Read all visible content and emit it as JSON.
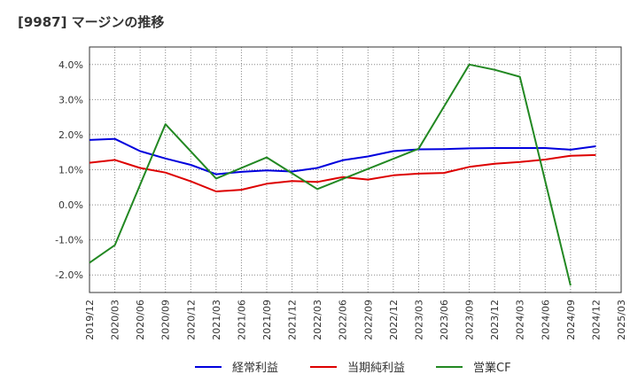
{
  "chart_data": {
    "type": "line",
    "title": "[9987]  マージンの推移",
    "xlabel": "",
    "ylabel": "",
    "x_ticks": [
      "2019/12",
      "2020/03",
      "2020/06",
      "2020/09",
      "2020/12",
      "2021/03",
      "2021/06",
      "2021/09",
      "2021/12",
      "2022/03",
      "2022/06",
      "2022/09",
      "2022/12",
      "2023/03",
      "2023/06",
      "2023/09",
      "2023/12",
      "2024/03",
      "2024/06",
      "2024/09",
      "2024/12",
      "2025/03"
    ],
    "y_ticks": [
      "-2.0%",
      "-1.0%",
      "0.0%",
      "1.0%",
      "2.0%",
      "3.0%",
      "4.0%"
    ],
    "ylim": [
      -2.5,
      4.5
    ],
    "grid": true,
    "legend_position": "bottom",
    "series": [
      {
        "name": "経常利益",
        "color": "#0000dd",
        "x": [
          "2019/12",
          "2020/03",
          "2020/06",
          "2020/09",
          "2020/12",
          "2021/03",
          "2021/06",
          "2021/09",
          "2021/12",
          "2022/03",
          "2022/06",
          "2022/09",
          "2022/12",
          "2023/03",
          "2023/06",
          "2023/09",
          "2023/12",
          "2024/03",
          "2024/06",
          "2024/09",
          "2024/12"
        ],
        "values": [
          1.85,
          1.88,
          1.53,
          1.32,
          1.14,
          0.87,
          0.94,
          0.98,
          0.95,
          1.05,
          1.27,
          1.38,
          1.53,
          1.58,
          1.59,
          1.61,
          1.62,
          1.62,
          1.62,
          1.57,
          1.67
        ]
      },
      {
        "name": "当期純利益",
        "color": "#dd0000",
        "x": [
          "2019/12",
          "2020/03",
          "2020/06",
          "2020/09",
          "2020/12",
          "2021/03",
          "2021/06",
          "2021/09",
          "2021/12",
          "2022/03",
          "2022/06",
          "2022/09",
          "2022/12",
          "2023/03",
          "2023/06",
          "2023/09",
          "2023/12",
          "2024/03",
          "2024/06",
          "2024/09",
          "2024/12"
        ],
        "values": [
          1.2,
          1.28,
          1.05,
          0.92,
          0.67,
          0.38,
          0.43,
          0.6,
          0.68,
          0.65,
          0.79,
          0.72,
          0.84,
          0.89,
          0.91,
          1.08,
          1.17,
          1.22,
          1.29,
          1.4,
          1.42
        ]
      },
      {
        "name": "営業CF",
        "color": "#228822",
        "x": [
          "2019/12",
          "2020/03",
          "2020/09",
          "2021/03",
          "2021/09",
          "2022/03",
          "2023/03",
          "2023/09",
          "2023/12",
          "2024/03",
          "2024/09"
        ],
        "values": [
          -1.65,
          -1.15,
          2.3,
          0.75,
          1.35,
          0.45,
          1.6,
          4.0,
          3.85,
          3.65,
          -2.3
        ]
      }
    ]
  }
}
